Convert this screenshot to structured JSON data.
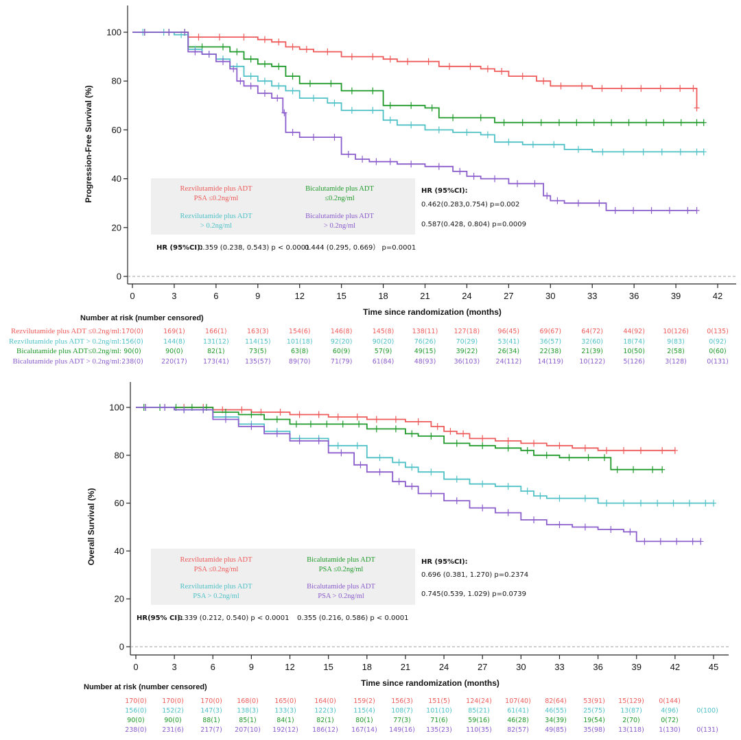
{
  "colors": {
    "red": "#ee5a5a",
    "cyan": "#4fc1c6",
    "green": "#1f9a2a",
    "purple": "#8a5ccc",
    "dashed": "#9e9e9e"
  },
  "chart_data": [
    {
      "type": "line",
      "title": "",
      "xlabel": "Time since randomization (months)",
      "ylabel": "Progression-Free Survival (%)",
      "xlim": [
        0,
        43
      ],
      "ylim": [
        0,
        110
      ],
      "xticks": [
        "0",
        "3",
        "6",
        "9",
        "12",
        "15",
        "18",
        "21",
        "24",
        "27",
        "30",
        "33",
        "36",
        "39",
        "42"
      ],
      "yticks": [
        "0",
        "20",
        "40",
        "60",
        "80",
        "100"
      ],
      "dashed_reference_y": 0,
      "series": [
        {
          "name": "Rezvilutamide plus ADT PSA ≤0.2ng/ml",
          "color": "red",
          "x": [
            0,
            3.5,
            4,
            7,
            9,
            10,
            11,
            12,
            13,
            15,
            18,
            19,
            22,
            25,
            26,
            27,
            29,
            30,
            33,
            40,
            40.5
          ],
          "y": [
            100,
            100,
            98,
            98,
            97,
            96,
            94,
            93,
            92,
            90,
            89,
            88,
            86,
            85,
            84,
            82,
            80,
            78,
            77,
            77,
            69
          ]
        },
        {
          "name": "Bicalutamide plus ADT ≤0.2ng/ml",
          "color": "green",
          "x": [
            0,
            3.5,
            4,
            6,
            7,
            8,
            9,
            10,
            11,
            12,
            15,
            18,
            19,
            21,
            22,
            24,
            26,
            30,
            35,
            40,
            41
          ],
          "y": [
            100,
            100,
            94,
            94,
            92,
            89,
            87,
            86,
            82,
            79,
            76,
            70,
            70,
            69,
            65,
            65,
            63,
            63,
            63,
            63,
            63
          ]
        },
        {
          "name": "Rezvilutamide plus ADT > 0.2ng/ml",
          "color": "cyan",
          "x": [
            0,
            3,
            4,
            5,
            6,
            7,
            8,
            9,
            10,
            11,
            12,
            14,
            15,
            18,
            19,
            21,
            23,
            25,
            26,
            28,
            31,
            33,
            36,
            40,
            41
          ],
          "y": [
            100,
            99,
            93,
            91,
            89,
            86,
            82,
            80,
            78,
            76,
            73,
            71,
            68,
            64,
            62,
            60,
            59,
            58,
            55,
            54,
            52,
            51,
            51,
            51,
            51
          ]
        },
        {
          "name": "Bicalutamide plus ADT > 0.2ng/ml",
          "color": "purple",
          "x": [
            0,
            3.5,
            4,
            5,
            6,
            7,
            7.5,
            8,
            9,
            10,
            10.8,
            11,
            12,
            14,
            15,
            16,
            17,
            18,
            19,
            21,
            23,
            24,
            25,
            27,
            29.5,
            30,
            31,
            33,
            34,
            40.5
          ],
          "y": [
            100,
            100,
            92,
            91,
            88,
            85,
            80,
            78,
            75,
            73,
            67,
            59,
            57,
            57,
            50,
            48,
            47,
            47,
            46,
            45,
            43,
            41,
            40,
            38,
            33,
            31,
            30,
            30,
            27,
            27
          ]
        }
      ],
      "legend": {
        "items": [
          {
            "line1": "Rezvilutamide plus ADT",
            "line2": "PSA ≤0.2ng/ml",
            "color": "red"
          },
          {
            "line1": "Bicalutamide plus ADT",
            "line2": "≤0.2ng/ml",
            "color": "green"
          },
          {
            "line1": "Rezvilutamide plus ADT",
            "line2": "> 0.2ng/ml",
            "color": "cyan"
          },
          {
            "line1": "Bicalutamide plus ADT",
            "line2": "> 0.2ng/ml",
            "color": "purple"
          }
        ]
      },
      "hr_right": {
        "title": "HR (95%CI):",
        "line1": "0.462(0.283,0.754) p=0.002",
        "line2": "0.587(0.428, 0.804) p=0.0009"
      },
      "hr_bottom": {
        "label": "HR (95%CI):",
        "value1": "0.359 (0.238, 0.543) p < 0.0001",
        "value2": "0.444 (0.295, 0.669） p=0.0001"
      },
      "risk_table": {
        "title": "Number at risk (number censored)",
        "rows": [
          {
            "label": "Rezvilutamide plus ADT ≤0.2ng/ml:",
            "color": "red",
            "values": [
              "170(0)",
              "169(1)",
              "166(1)",
              "163(3)",
              "154(6)",
              "146(8)",
              "145(8)",
              "138(11)",
              "127(18)",
              "96(45)",
              "69(67)",
              "64(72)",
              "44(92)",
              "10(126)",
              "0(135)"
            ]
          },
          {
            "label": "Rezvilutamide plus ADT > 0.2ng/ml:",
            "color": "cyan",
            "values": [
              "156(0)",
              "144(8)",
              "131(12)",
              "114(15)",
              "101(18)",
              "92(20)",
              "90(20)",
              "76(26)",
              "70(29)",
              "53(41)",
              "36(57)",
              "32(60)",
              "18(74)",
              "9(83)",
              "0(92)"
            ]
          },
          {
            "label": "Bicalutamide plus ADT≤0.2ng/ml:",
            "color": "green",
            "values": [
              "90(0)",
              "90(0)",
              "82(1)",
              "73(5)",
              "63(8)",
              "60(9)",
              "57(9)",
              "49(15)",
              "39(22)",
              "26(34)",
              "22(38)",
              "21(39)",
              "10(50)",
              "2(58)",
              "0(60)"
            ]
          },
          {
            "label": "Bicalutamide plus ADT > 0.2ng/ml:",
            "color": "purple",
            "values": [
              "238(0)",
              "220(17)",
              "173(41)",
              "135(57)",
              "89(70)",
              "71(79)",
              "61(84)",
              "48(93)",
              "36(103)",
              "24(112)",
              "14(119)",
              "10(122)",
              "5(126)",
              "3(128)",
              "0(131)"
            ]
          }
        ]
      }
    },
    {
      "type": "line",
      "title": "",
      "xlabel": "Time since randomization (months)",
      "ylabel": "Overall Survival (%)",
      "xlim": [
        0,
        46
      ],
      "ylim": [
        0,
        110
      ],
      "xticks": [
        "0",
        "3",
        "6",
        "9",
        "12",
        "15",
        "18",
        "21",
        "24",
        "27",
        "30",
        "33",
        "36",
        "39",
        "42",
        "45"
      ],
      "yticks": [
        "0",
        "20",
        "40",
        "60",
        "80",
        "100"
      ],
      "dashed_reference_y": 0,
      "series": [
        {
          "name": "Rezvilutamide plus ADT PSA ≤0.2ng/ml",
          "color": "red",
          "x": [
            0,
            3,
            6,
            9,
            12,
            15,
            18,
            21,
            23,
            24,
            25,
            26,
            28,
            30,
            32,
            34,
            36,
            40,
            42
          ],
          "y": [
            100,
            100,
            99,
            98,
            97,
            96,
            95,
            94,
            92,
            90,
            89,
            87,
            86,
            85,
            84,
            83,
            82,
            82,
            82
          ]
        },
        {
          "name": "Bicalutamide plus ADT PSA ≤0.2ng/ml",
          "color": "green",
          "x": [
            0,
            5,
            6,
            8,
            10,
            12,
            13,
            18,
            21,
            22,
            24,
            26,
            28,
            30,
            31,
            33,
            36,
            37,
            38,
            41
          ],
          "y": [
            100,
            100,
            98,
            97,
            95,
            93,
            93,
            91,
            89,
            88,
            85,
            84,
            83,
            82,
            80,
            79,
            79,
            74,
            74,
            74
          ]
        },
        {
          "name": "Rezvilutamide plus ADT PSA > 0.2ng/ml",
          "color": "cyan",
          "x": [
            0,
            3,
            6,
            8,
            10,
            12,
            15,
            18,
            20,
            21,
            22,
            24,
            26,
            28,
            30,
            31,
            32,
            34,
            36,
            40,
            45
          ],
          "y": [
            100,
            99,
            96,
            93,
            90,
            87,
            84,
            79,
            77,
            75,
            73,
            70,
            68,
            67,
            65,
            63,
            62,
            62,
            60,
            60,
            60
          ]
        },
        {
          "name": "Bicalutamide plus ADT PSA > 0.2ng/ml",
          "color": "purple",
          "x": [
            0,
            3,
            6,
            8,
            10,
            12,
            15,
            17,
            18,
            20,
            21,
            22,
            24,
            26,
            28,
            30,
            32,
            34,
            36,
            38,
            39,
            44
          ],
          "y": [
            100,
            99,
            95,
            92,
            89,
            86,
            81,
            76,
            73,
            69,
            67,
            64,
            61,
            58,
            56,
            53,
            51,
            50,
            49,
            48,
            44,
            44
          ]
        }
      ],
      "legend": {
        "items": [
          {
            "line1": "Rezvilutamide plus ADT",
            "line2": "PSA ≤0.2ng/ml",
            "color": "red"
          },
          {
            "line1": "Bicalutamide plus ADT",
            "line2": "PSA ≤0.2ng/ml",
            "color": "green"
          },
          {
            "line1": "Rezvilutamide plus ADT",
            "line2": "PSA > 0.2ng/ml",
            "color": "cyan"
          },
          {
            "line1": "Bicalutamide plus ADT",
            "line2": "PSA > 0.2ng/ml",
            "color": "purple"
          }
        ]
      },
      "hr_right": {
        "title": "HR (95%CI):",
        "line1": "0.696 (0.381, 1.270) p=0.2374",
        "line2": "0.745(0.539, 1.029) p=0.0739"
      },
      "hr_bottom": {
        "label": "HR(95% CI):",
        "value1": "0.339 (0.212, 0.540) p < 0.0001",
        "value2": "0.355 (0.216, 0.586) p < 0.0001"
      },
      "risk_table": {
        "title": "Number at risk (number censored)",
        "rows": [
          {
            "label": "",
            "color": "red",
            "values": [
              "170(0)",
              "170(0)",
              "170(0)",
              "168(0)",
              "165(0)",
              "164(0)",
              "159(2)",
              "156(3)",
              "151(5)",
              "124(24)",
              "107(40)",
              "82(64)",
              "53(91)",
              "15(129)",
              "0(144)",
              ""
            ]
          },
          {
            "label": "",
            "color": "cyan",
            "values": [
              "156(0)",
              "152(2)",
              "147(3)",
              "138(3)",
              "133(3)",
              "122(3)",
              "115(4)",
              "108(7)",
              "101(10)",
              "85(21)",
              "61(41)",
              "46(55)",
              "25(75)",
              "13(87)",
              "4(96)",
              "0(100)"
            ]
          },
          {
            "label": "",
            "color": "green",
            "values": [
              "90(0)",
              "90(0)",
              "88(1)",
              "85(1)",
              "84(1)",
              "82(1)",
              "80(1)",
              "77(3)",
              "71(6)",
              "59(16)",
              "46(28)",
              "34(39)",
              "19(54)",
              "2(70)",
              "0(72)",
              ""
            ]
          },
          {
            "label": "",
            "color": "purple",
            "values": [
              "238(0)",
              "231(6)",
              "217(7)",
              "207(10)",
              "192(12)",
              "186(12)",
              "167(14)",
              "149(16)",
              "135(23)",
              "110(35)",
              "82(57)",
              "49(85)",
              "35(98)",
              "13(118)",
              "1(130)",
              "0(131)"
            ]
          }
        ]
      }
    }
  ]
}
